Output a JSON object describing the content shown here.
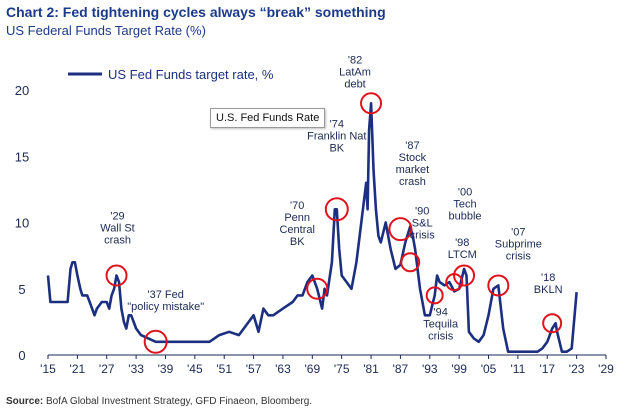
{
  "header": {
    "title": "Chart 2: Fed tightening cycles always “break” something",
    "subtitle": "US Federal Funds Target Rate (%)"
  },
  "source": {
    "label": "Source:",
    "text": "BofA Global Investment Strategy, GFD Finaeon, Bloomberg."
  },
  "tooltip": "U.S. Fed Funds Rate",
  "chart_data": {
    "type": "line",
    "title": "Chart 2: Fed tightening cycles always “break” something",
    "ylabel": "US Federal Funds Target Rate (%)",
    "xlim": [
      1915,
      2029
    ],
    "ylim": [
      0,
      20
    ],
    "x_ticks": [
      1915,
      1921,
      1927,
      1933,
      1939,
      1945,
      1951,
      1957,
      1963,
      1969,
      1975,
      1981,
      1987,
      1993,
      1999,
      2005,
      2011,
      2017,
      2023,
      2029
    ],
    "x_tick_labels": [
      "'15",
      "'21",
      "'27",
      "'33",
      "'39",
      "'45",
      "'51",
      "'57",
      "'63",
      "'69",
      "'75",
      "'81",
      "'87",
      "'93",
      "'99",
      "'05",
      "'11",
      "'17",
      "'23",
      "'29"
    ],
    "y_ticks": [
      0,
      5,
      10,
      15,
      20
    ],
    "grid": false,
    "legend": "top-left",
    "series": [
      {
        "name": "US Fed Funds target rate, %",
        "color": "#1c2f80",
        "x": [
          1915,
          1915.5,
          1916,
          1917,
          1917.8,
          1918,
          1919,
          1919.6,
          1920,
          1920.5,
          1921,
          1921.6,
          1922,
          1923,
          1924,
          1924.5,
          1925,
          1926,
          1927,
          1927.5,
          1928,
          1928.5,
          1929,
          1929.5,
          1930,
          1930.5,
          1931,
          1931.5,
          1932,
          1933,
          1934,
          1937,
          1940,
          1946,
          1948,
          1950,
          1952,
          1954,
          1955,
          1956,
          1957,
          1958,
          1959,
          1960,
          1961,
          1963,
          1965,
          1966,
          1967,
          1968,
          1969,
          1970,
          1971,
          1971.5,
          1972,
          1973,
          1973.6,
          1974,
          1974.5,
          1975,
          1976,
          1977,
          1978,
          1979,
          1980,
          1980.3,
          1980.6,
          1981,
          1981.5,
          1982,
          1982.5,
          1983,
          1984,
          1985,
          1986,
          1987,
          1988,
          1989,
          1989.5,
          1990,
          1991,
          1992,
          1993,
          1994,
          1994.5,
          1995,
          1996,
          1997,
          1998,
          1999,
          2000,
          2000.5,
          2001,
          2002,
          2003,
          2004,
          2005,
          2006,
          2007,
          2008,
          2009,
          2015,
          2016,
          2017,
          2018,
          2018.7,
          2019,
          2020,
          2021,
          2022,
          2023
        ],
        "y": [
          6,
          4,
          4,
          4,
          4,
          4,
          4,
          6.5,
          7,
          7,
          6,
          5,
          4.5,
          4.5,
          3.5,
          3,
          3.5,
          4,
          4,
          3.5,
          4.5,
          5,
          6,
          5.5,
          3.5,
          2.5,
          2,
          3,
          3,
          2,
          1.5,
          1,
          1,
          1,
          1,
          1.5,
          1.75,
          1.5,
          2,
          2.5,
          3,
          1.75,
          3.5,
          3,
          3,
          3.5,
          4,
          4.5,
          4.5,
          5.5,
          6,
          5,
          3.5,
          5,
          4.5,
          7,
          11,
          11,
          8,
          6,
          5.5,
          5,
          7,
          10,
          13,
          11,
          17,
          19,
          14,
          11,
          9,
          8.5,
          10,
          8,
          6.5,
          6.8,
          8.5,
          9.7,
          9,
          8,
          5,
          3,
          3,
          4.5,
          6,
          5.5,
          5.25,
          5.5,
          4.8,
          5,
          6.5,
          6,
          1.75,
          1.25,
          1,
          1.5,
          3,
          5,
          5.25,
          2,
          0.25,
          0.25,
          0.5,
          1,
          2,
          2.4,
          1.75,
          0.25,
          0.25,
          0.5,
          4.75
        ]
      }
    ],
    "annotations": [
      {
        "label": "'29\nWall St\ncrash",
        "x": 1929,
        "y": 6
      },
      {
        "label": "'37 Fed\n\"policy mistake\"",
        "x": 1937,
        "y": 1
      },
      {
        "label": "'70\nPenn\nCentral\nBK",
        "x": 1970,
        "y": 5
      },
      {
        "label": "'74\nFranklin Nat\nBK",
        "x": 1974,
        "y": 11
      },
      {
        "label": "'82\nLatAm\ndebt",
        "x": 1981,
        "y": 19
      },
      {
        "label": "'87\nStock\nmarket\ncrash",
        "x": 1987,
        "y": 9.5
      },
      {
        "label": "'90\nS&L\ncrisis",
        "x": 1989,
        "y": 7
      },
      {
        "label": "'94\nTequila\ncrisis",
        "x": 1994,
        "y": 4.5
      },
      {
        "label": "'98\nLTCM",
        "x": 1998,
        "y": 5.5
      },
      {
        "label": "'00\nTech\nbubble",
        "x": 2000,
        "y": 6
      },
      {
        "label": "'07\nSubprime\ncrisis",
        "x": 2007,
        "y": 5.25
      },
      {
        "label": "'18\nBKLN",
        "x": 2018,
        "y": 2.4
      }
    ]
  }
}
